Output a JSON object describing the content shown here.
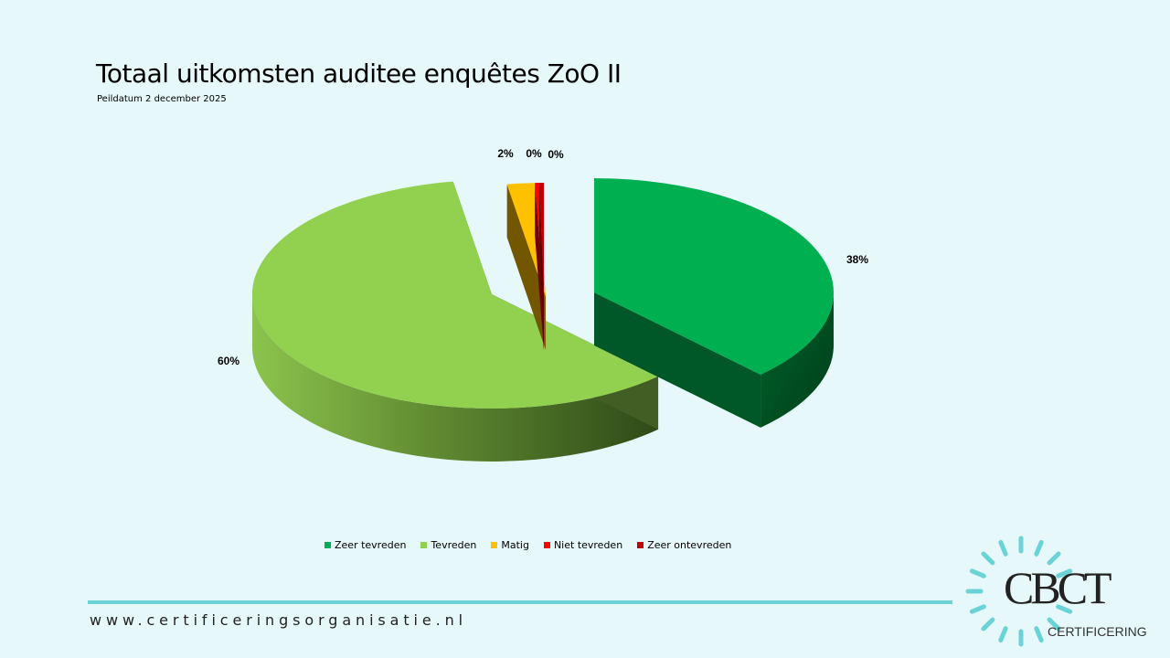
{
  "header": {
    "title": "Totaal uitkomsten auditee enquêtes ZoO II",
    "subtitle": "Peildatum 2 december 2025"
  },
  "chart_data": {
    "type": "pie",
    "style": "3d-exploded",
    "title": "",
    "categories": [
      "Zeer tevreden",
      "Tevreden",
      "Matig",
      "Niet tevreden",
      "Zeer ontevreden"
    ],
    "values": [
      38,
      60,
      2,
      0.3,
      0.3
    ],
    "labels": [
      "38%",
      "60%",
      "2%",
      "0%",
      "0%"
    ],
    "colors": [
      "#00b050",
      "#92d050",
      "#ffc000",
      "#ff0000",
      "#c00000"
    ],
    "legend_position": "bottom"
  },
  "footer": {
    "website": "www.certificeringsorganisatie.nl",
    "logo_text": "CBCT",
    "logo_subtext": "CERTIFICERING",
    "accent_color": "#6ad3d6"
  }
}
